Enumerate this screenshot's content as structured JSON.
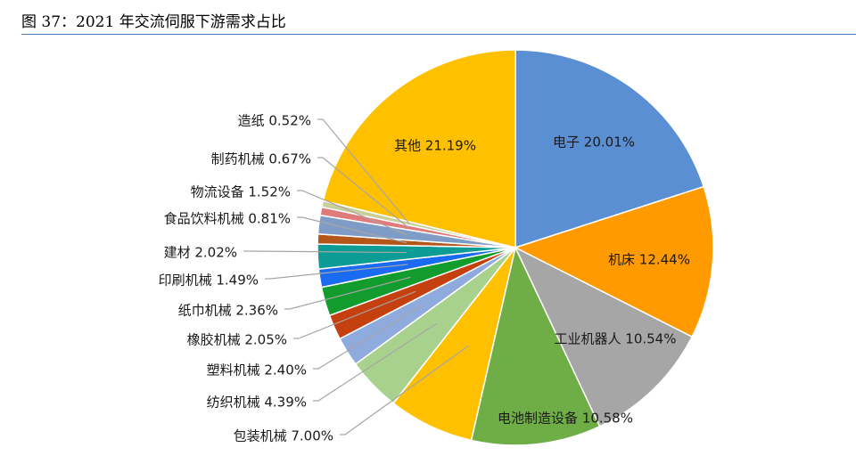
{
  "figure": {
    "title": "图 37：2021 年交流伺服下游需求占比"
  },
  "chart_data": {
    "type": "pie",
    "start_angle_deg": 0,
    "direction": "clockwise",
    "slices": [
      {
        "label": "电子 20.01%",
        "value": 20.01,
        "color": "#5b8fd4",
        "label_position": "inside"
      },
      {
        "label": "机床 12.44%",
        "value": 12.44,
        "color": "#ff9a00",
        "label_position": "inside"
      },
      {
        "label": "工业机器人 10.54%",
        "value": 10.54,
        "color": "#a6a6a6",
        "label_position": "inside"
      },
      {
        "label": "电池制造设备 10.58%",
        "value": 10.58,
        "color": "#6fad47",
        "label_position": "inside"
      },
      {
        "label": "包装机械 7.00%",
        "value": 7.0,
        "color": "#ffc000",
        "label_position": "leader"
      },
      {
        "label": "纺织机械 4.39%",
        "value": 4.39,
        "color": "#a9d18e",
        "label_position": "leader"
      },
      {
        "label": "塑料机械 2.40%",
        "value": 2.4,
        "color": "#8faadc",
        "label_position": "leader"
      },
      {
        "label": "橡胶机械 2.05%",
        "value": 2.05,
        "color": "#c5400f",
        "label_position": "leader"
      },
      {
        "label": "纸巾机械 2.36%",
        "value": 2.36,
        "color": "#129c2e",
        "label_position": "leader"
      },
      {
        "label": "印刷机械 1.49%",
        "value": 1.49,
        "color": "#1a6bf2",
        "label_position": "leader"
      },
      {
        "label": "建材 2.02%",
        "value": 2.02,
        "color": "#0c9c95",
        "label_position": "leader"
      },
      {
        "label": "食品饮料机械 0.81%",
        "value": 0.81,
        "color": "#b4551a",
        "label_position": "leader"
      },
      {
        "label": "物流设备 1.52%",
        "value": 1.52,
        "color": "#7f9cc6",
        "label_position": "leader"
      },
      {
        "label": "制药机械 0.67%",
        "value": 0.67,
        "color": "#e07b7b",
        "label_position": "leader"
      },
      {
        "label": "造纸 0.52%",
        "value": 0.52,
        "color": "#c9cf9a",
        "label_position": "leader"
      },
      {
        "label": "其他 21.19%",
        "value": 21.19,
        "color": "#ffc000",
        "label_position": "inside"
      }
    ]
  }
}
